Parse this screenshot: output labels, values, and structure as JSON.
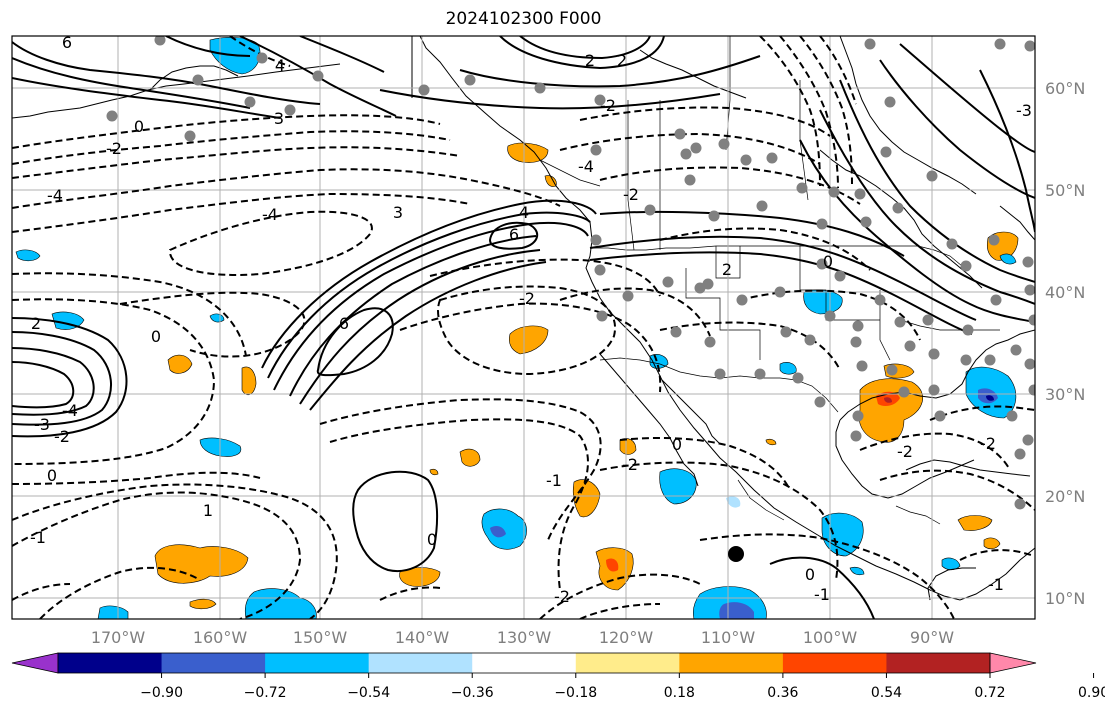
{
  "title": "2024102300 F000",
  "map": {
    "lon_labels": [
      "170°W",
      "160°W",
      "150°W",
      "140°W",
      "130°W",
      "120°W",
      "110°W",
      "100°W",
      "90°W"
    ],
    "lat_labels": [
      "60°N",
      "50°N",
      "40°N",
      "30°N",
      "20°N",
      "10°N"
    ],
    "contour_labels": [
      "6",
      "4",
      "-4",
      "-4",
      "6",
      "6",
      "4",
      "3",
      "-2",
      "2",
      "0",
      "0",
      "-4",
      "-3",
      "-2",
      "-1",
      "0",
      "1",
      "2",
      "3",
      "0",
      "-2",
      "-1",
      "-2",
      "-2",
      "0",
      "-2",
      "2",
      "0",
      "-2",
      "-1",
      "-2",
      "0",
      "-3",
      "2",
      "-1",
      "-4",
      "-2"
    ],
    "colors": {
      "land_line": "#000000",
      "grid": "#b0b0b0",
      "station_dot": "#808080"
    }
  },
  "colorbar": {
    "labels": [
      "−0.90",
      "−0.72",
      "−0.54",
      "−0.36",
      "−0.18",
      "0.18",
      "0.36",
      "0.54",
      "0.72",
      "0.90"
    ],
    "colors": [
      "#9932cc",
      "#00008b",
      "#3a5fcd",
      "#00bfff",
      "#b0e2ff",
      "#ffffff",
      "#ffec8b",
      "#ffa500",
      "#ff4500",
      "#b22222",
      "#ff88aa"
    ]
  }
}
